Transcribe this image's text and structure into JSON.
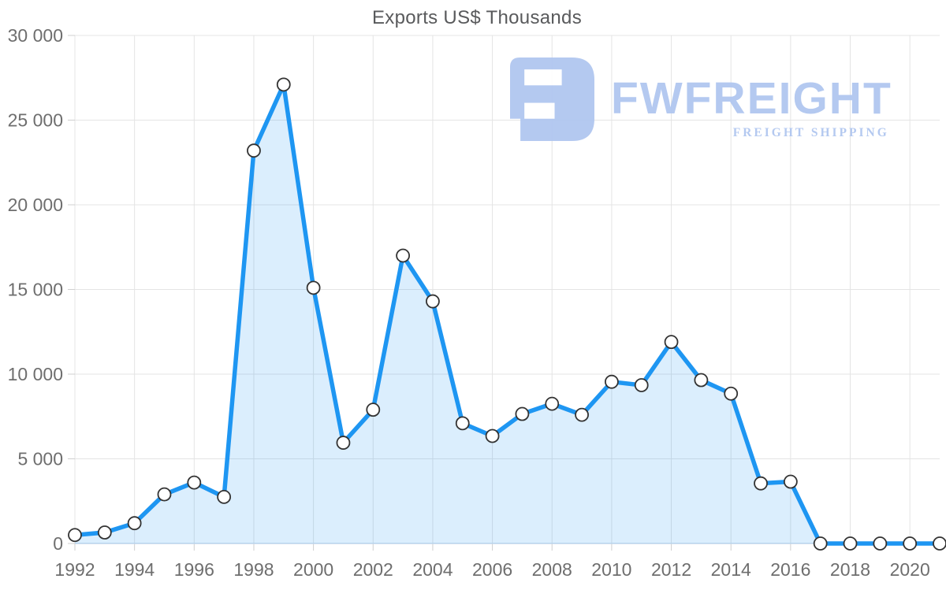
{
  "chart_data": {
    "type": "area",
    "title": "Exports US$ Thousands",
    "x": [
      1992,
      1993,
      1994,
      1995,
      1996,
      1997,
      1998,
      1999,
      2000,
      2001,
      2002,
      2003,
      2004,
      2005,
      2006,
      2007,
      2008,
      2009,
      2010,
      2011,
      2012,
      2013,
      2014,
      2015,
      2016,
      2017,
      2018,
      2019,
      2020,
      2021
    ],
    "values": [
      500,
      650,
      1200,
      2900,
      3600,
      2750,
      23200,
      27100,
      15100,
      5950,
      7900,
      17000,
      14300,
      7100,
      6350,
      7650,
      8250,
      7600,
      9550,
      9350,
      11900,
      9650,
      8850,
      3550,
      3650,
      0,
      0,
      0,
      0,
      0
    ],
    "xlabel": "",
    "ylabel": "",
    "ylim": [
      0,
      30000
    ],
    "xlim": [
      1992,
      2021
    ],
    "yticks": [
      {
        "value": 0,
        "label": "0"
      },
      {
        "value": 5000,
        "label": "5 000"
      },
      {
        "value": 10000,
        "label": "10 000"
      },
      {
        "value": 15000,
        "label": "15 000"
      },
      {
        "value": 20000,
        "label": "20 000"
      },
      {
        "value": 25000,
        "label": "25 000"
      },
      {
        "value": 30000,
        "label": "30 000"
      }
    ],
    "xticks": [
      {
        "year": 1992,
        "label": "1992"
      },
      {
        "year": 1994,
        "label": "1994"
      },
      {
        "year": 1996,
        "label": "1996"
      },
      {
        "year": 1998,
        "label": "1998"
      },
      {
        "year": 2000,
        "label": "2000"
      },
      {
        "year": 2002,
        "label": "2002"
      },
      {
        "year": 2004,
        "label": "2004"
      },
      {
        "year": 2006,
        "label": "2006"
      },
      {
        "year": 2008,
        "label": "2008"
      },
      {
        "year": 2010,
        "label": "2010"
      },
      {
        "year": 2012,
        "label": "2012"
      },
      {
        "year": 2014,
        "label": "2014"
      },
      {
        "year": 2016,
        "label": "2016"
      },
      {
        "year": 2018,
        "label": "2018"
      },
      {
        "year": 2020,
        "label": "2020"
      }
    ],
    "grid": "on",
    "legend": "none",
    "colors": {
      "line": "#1e96f2",
      "area_fill": "rgba(33,150,243,0.16)",
      "marker_fill": "#ffffff",
      "marker_stroke": "#333333",
      "gridline": "#e4e4e4",
      "zero_axis_line": "#c9d9ea",
      "tick": "#cfcfcf",
      "axis_label_text": "#6e6e6e",
      "title_text": "#595a5c"
    }
  },
  "watermark": {
    "brand": "FWFREIGHT",
    "tagline": "FREIGHT SHIPPING",
    "color": "#b1c7f0"
  }
}
